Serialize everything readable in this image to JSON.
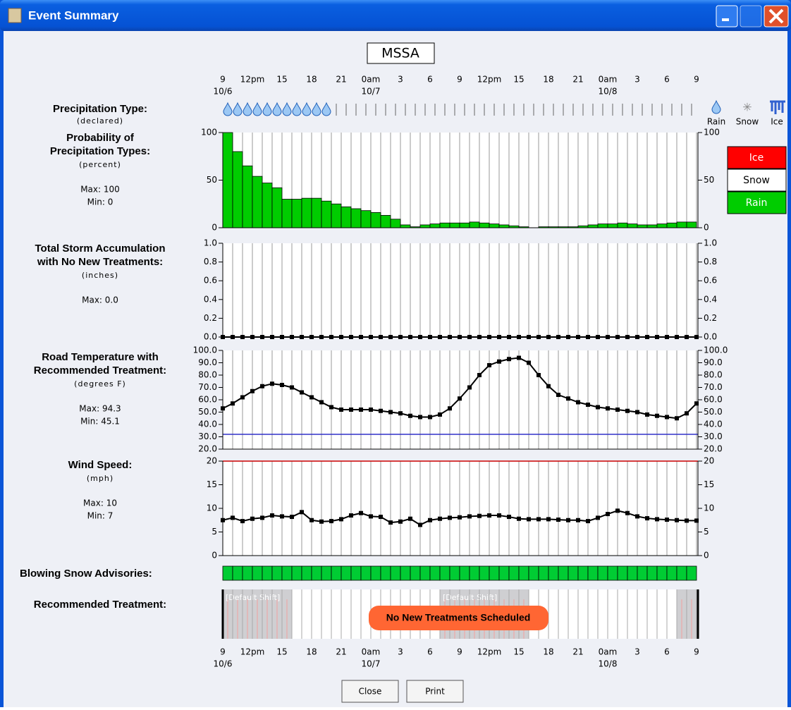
{
  "window": {
    "title": "Event Summary"
  },
  "station": "MSSA",
  "time_axis": {
    "labels": [
      "9",
      "12pm",
      "15",
      "18",
      "21",
      "0am",
      "3",
      "6",
      "9",
      "12pm",
      "15",
      "18",
      "21",
      "0am",
      "3",
      "6",
      "9"
    ],
    "dates": [
      {
        "at": 0,
        "label": "10/6"
      },
      {
        "at": 5,
        "label": "10/7"
      },
      {
        "at": 13,
        "label": "10/8"
      }
    ]
  },
  "precip_type": {
    "title": "Precipitation Type:",
    "unit": "(declared)",
    "declared": [
      "Rain",
      "Rain",
      "Rain",
      "Rain",
      "Rain",
      "Rain",
      "Rain",
      "Rain",
      "Rain",
      "Rain",
      "Rain",
      null,
      null,
      null,
      null,
      null,
      null,
      null,
      null,
      null,
      null,
      null,
      null,
      null,
      null,
      null,
      null,
      null,
      null,
      null,
      null,
      null,
      null,
      null,
      null,
      null,
      null,
      null,
      null,
      null,
      null,
      null,
      null,
      null,
      null,
      null,
      null,
      null
    ],
    "legend": [
      "Rain",
      "Snow",
      "Ice"
    ]
  },
  "chart_data": [
    {
      "type": "bar",
      "title": [
        "Probability of",
        "Precipitation Types:"
      ],
      "unit": "(percent)",
      "stats": [
        "Max: 100",
        "Min: 0"
      ],
      "ylim": [
        0,
        100
      ],
      "yticks": [
        0,
        50,
        100
      ],
      "legend_items": [
        {
          "name": "Ice",
          "color": "#ff0000"
        },
        {
          "name": "Snow",
          "color": "#ffffff"
        },
        {
          "name": "Rain",
          "color": "#00cc00"
        }
      ],
      "series": [
        {
          "name": "Rain",
          "color": "#00cc00",
          "values": [
            100,
            80,
            65,
            54,
            47,
            42,
            30,
            30,
            31,
            31,
            28,
            25,
            22,
            20,
            18,
            16,
            13,
            9,
            3,
            1,
            3,
            4,
            5,
            5,
            5,
            6,
            5,
            4,
            3,
            2,
            1,
            0,
            1,
            1,
            1,
            1,
            2,
            3,
            4,
            4,
            5,
            4,
            3,
            3,
            4,
            5,
            6,
            6
          ]
        }
      ]
    },
    {
      "type": "line",
      "title": [
        "Total Storm Accumulation",
        "with No New Treatments:"
      ],
      "unit": "(inches)",
      "stats": [
        "Max: 0.0"
      ],
      "ylim": [
        0,
        1
      ],
      "yticks": [
        {
          "value": 0,
          "label": "0.0"
        },
        0.2,
        0.4,
        0.6,
        0.8,
        {
          "value": 1,
          "label": "1.0"
        }
      ],
      "series": [
        {
          "color": "#000000",
          "values": [
            0,
            0,
            0,
            0,
            0,
            0,
            0,
            0,
            0,
            0,
            0,
            0,
            0,
            0,
            0,
            0,
            0,
            0,
            0,
            0,
            0,
            0,
            0,
            0,
            0,
            0,
            0,
            0,
            0,
            0,
            0,
            0,
            0,
            0,
            0,
            0,
            0,
            0,
            0,
            0,
            0,
            0,
            0,
            0,
            0,
            0,
            0,
            0,
            0
          ]
        }
      ]
    },
    {
      "type": "line",
      "title": [
        "Road Temperature with",
        "Recommended Treatment:"
      ],
      "unit": "(degrees F)",
      "stats": [
        "Max: 94.3",
        "Min: 45.1"
      ],
      "ylim": [
        20,
        100
      ],
      "yticks": [
        {
          "value": 20,
          "label": "20.0"
        },
        {
          "value": 30,
          "label": "30.0"
        },
        {
          "value": 40,
          "label": "40.0"
        },
        {
          "value": 50,
          "label": "50.0"
        },
        {
          "value": 60,
          "label": "60.0"
        },
        {
          "value": 70,
          "label": "70.0"
        },
        {
          "value": 80,
          "label": "80.0"
        },
        {
          "value": 90,
          "label": "90.0"
        },
        {
          "value": 100,
          "label": "100.0"
        }
      ],
      "ref_lines": [
        {
          "value": 32,
          "color": "#3030c8"
        }
      ],
      "series": [
        {
          "color": "#000000",
          "values": [
            53,
            57,
            62,
            67,
            71,
            73,
            72,
            70,
            66,
            62,
            58,
            54,
            52,
            52,
            52,
            52,
            51,
            50,
            49,
            47,
            46,
            46,
            48,
            53,
            61,
            70,
            80,
            88,
            91,
            93,
            94,
            90,
            80,
            71,
            64,
            61,
            58,
            56,
            54,
            53,
            52,
            51,
            50,
            48,
            47,
            46,
            45,
            49,
            57
          ]
        }
      ]
    },
    {
      "type": "line",
      "title": [
        "Wind Speed:"
      ],
      "unit": "(mph)",
      "stats": [
        "Max: 10",
        "Min: 7"
      ],
      "ylim": [
        0,
        20
      ],
      "yticks": [
        0,
        5,
        10,
        15,
        20
      ],
      "ref_lines": [
        {
          "value": 20,
          "color": "#cc0000"
        }
      ],
      "series": [
        {
          "color": "#000000",
          "values": [
            7.5,
            8,
            7.3,
            7.8,
            8,
            8.5,
            8.3,
            8.2,
            9.2,
            7.5,
            7.2,
            7.3,
            7.7,
            8.5,
            9,
            8.3,
            8.2,
            7,
            7.2,
            7.8,
            6.5,
            7.5,
            7.8,
            8,
            8.1,
            8.3,
            8.4,
            8.5,
            8.5,
            8.2,
            7.8,
            7.7,
            7.7,
            7.7,
            7.6,
            7.5,
            7.5,
            7.3,
            8,
            8.8,
            9.5,
            9,
            8.3,
            7.9,
            7.7,
            7.6,
            7.5,
            7.4,
            7.4
          ]
        }
      ]
    }
  ],
  "blowing_snow": {
    "title": "Blowing Snow Advisories:",
    "hours": 48,
    "color": "#00cc33"
  },
  "treatment": {
    "title": "Recommended Treatment:",
    "message": "No New Treatments Scheduled",
    "shifts": [
      {
        "label": "[Default Shift]",
        "start": 0,
        "end": 7
      },
      {
        "label": "[Default Shift]",
        "start": 22,
        "end": 31
      },
      {
        "start": 46,
        "end": 48
      }
    ]
  },
  "buttons": [
    "Close",
    "Print"
  ]
}
